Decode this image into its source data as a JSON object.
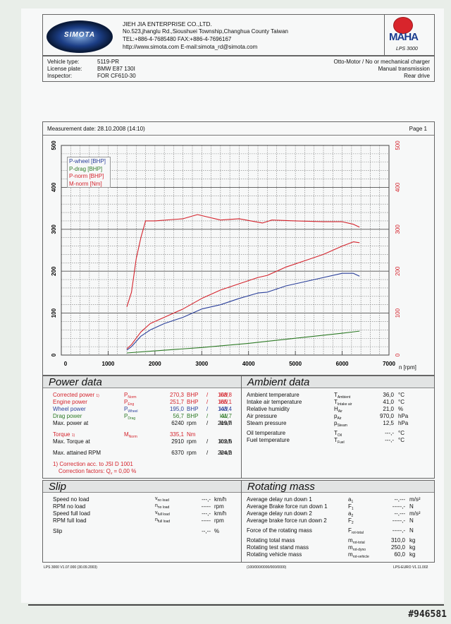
{
  "header": {
    "brand_logo": "SIMOTA",
    "company": "JIEH JIA ENTERPRISE CO.,LTD.",
    "address": "No.523,jhanglu Rd.,Sioushuei Township,Changhua County Taiwan",
    "phone_fax": "TEL:+886-4-7685480  FAX:+886-4-7696167",
    "web_email": "http://www.simota.com  E-mail:simota_rd@simota.com",
    "maha_logo": "MAHA",
    "maha_sub": "LPS 3000"
  },
  "vehicle": {
    "labels": [
      "Vehicle type:",
      "License plate:",
      "Inspector:"
    ],
    "values": [
      "5119-PR",
      "BMW E87 130I",
      "FOR CF610-30"
    ],
    "right": [
      "Otto-Motor / No or mechanical charger",
      "Manual transmission",
      "Rear drive"
    ]
  },
  "measurement": {
    "date_label": "Measurement date: 28.10.2008 (14:10)",
    "page": "Page 1"
  },
  "chart_data": {
    "type": "line",
    "title": "",
    "xlabel": "n [rpm]",
    "ylabel": "",
    "xlim": [
      0,
      7000
    ],
    "ylim": [
      0,
      500
    ],
    "x_ticks": [
      "0",
      "1000",
      "2000",
      "3000",
      "4000",
      "5000",
      "6000",
      "7000"
    ],
    "y_ticks_left": [
      "0",
      "100",
      "200",
      "300",
      "400",
      "500"
    ],
    "y_ticks_right": [
      "0",
      "100",
      "200",
      "300",
      "400",
      "500"
    ],
    "grid": true,
    "legend_position": "top-left",
    "legend": [
      "P-wheel [BHP]",
      "P-drag [BHP]",
      "P-norm [BHP]",
      "M-norm [Nm]"
    ],
    "series": [
      {
        "name": "P-wheel [BHP]",
        "color": "#2a3f9a",
        "x": [
          1400,
          1500,
          1700,
          1900,
          2200,
          2600,
          3000,
          3400,
          3800,
          4200,
          4400,
          4800,
          5200,
          5600,
          6000,
          6240,
          6370
        ],
        "y": [
          12,
          20,
          45,
          60,
          75,
          90,
          110,
          120,
          135,
          148,
          150,
          165,
          175,
          185,
          195,
          195,
          188
        ]
      },
      {
        "name": "P-drag [BHP]",
        "color": "#2d7a25",
        "x": [
          1400,
          2000,
          3000,
          4000,
          5000,
          6000,
          6370
        ],
        "y": [
          5,
          10,
          18,
          28,
          40,
          52,
          57
        ]
      },
      {
        "name": "P-norm [BHP]",
        "color": "#d4232c",
        "x": [
          1400,
          1500,
          1700,
          1900,
          2200,
          2600,
          3000,
          3400,
          3800,
          4200,
          4400,
          4800,
          5200,
          5600,
          6000,
          6240,
          6370
        ],
        "y": [
          15,
          25,
          55,
          75,
          90,
          110,
          135,
          155,
          170,
          185,
          190,
          210,
          225,
          240,
          260,
          270,
          268
        ]
      },
      {
        "name": "M-norm [Nm]",
        "color": "#d4232c",
        "x": [
          1400,
          1500,
          1600,
          1700,
          1800,
          2000,
          2600,
          2910,
          3100,
          3400,
          3800,
          4300,
          4500,
          5000,
          5600,
          6000,
          6240,
          6370
        ],
        "y": [
          115,
          150,
          230,
          280,
          320,
          320,
          325,
          335,
          330,
          322,
          325,
          315,
          322,
          320,
          318,
          318,
          312,
          305
        ]
      }
    ]
  },
  "power_data": {
    "title": "Power data",
    "rows": [
      {
        "label": "Corrected power",
        "note": "1)",
        "sym": "P",
        "sub": "Norm",
        "v1": "270,3",
        "u1": "BHP",
        "v2": "198,8",
        "u2": "kW",
        "color": "red"
      },
      {
        "label": "Engine power",
        "sym": "P",
        "sub": "Eng",
        "v1": "251,7",
        "u1": "BHP",
        "v2": "185,1",
        "u2": "kW",
        "color": "red"
      },
      {
        "label": "Wheel power",
        "sym": "P",
        "sub": "Wheel",
        "v1": "195,0",
        "u1": "BHP",
        "v2": "143,4",
        "u2": "kW",
        "color": "blue"
      },
      {
        "label": "Drag power",
        "sym": "P",
        "sub": "Drag",
        "v1": "56,7",
        "u1": "BHP",
        "v2": "41,7",
        "u2": "kW",
        "color": "green"
      },
      {
        "label": "Max. power at",
        "v1": "6240",
        "u1": "rpm",
        "v2": "219,7",
        "u2": "km/h"
      }
    ],
    "torque": {
      "label": "Torque",
      "note": "1)",
      "sym": "M",
      "sub": "Norm",
      "v1": "335,1",
      "u1": "Nm"
    },
    "max_torque": {
      "label": "Max. Torque at",
      "v1": "2910",
      "u1": "rpm",
      "v2": "102,5",
      "u2": "km/h"
    },
    "max_rpm": {
      "label": "Max. attained RPM",
      "v1": "6370",
      "u1": "rpm",
      "v2": "224,2",
      "u2": "km/h"
    },
    "correction1": "1) Correction acc. to JSI D 1001",
    "correction2": "Correction factors: Q",
    "correction2_sub": "v",
    "correction2_val": " =   0,00 %"
  },
  "ambient_data": {
    "title": "Ambient data",
    "rows": [
      {
        "label": "Ambient temperature",
        "sym": "T",
        "sub": "Ambient",
        "v": "36,0",
        "u": "°C"
      },
      {
        "label": "Intake air temperature",
        "sym": "T",
        "sub": "Intake air",
        "v": "41,0",
        "u": "°C"
      },
      {
        "label": "Relative humidity",
        "sym": "H",
        "sub": "Air",
        "v": "21,0",
        "u": "%"
      },
      {
        "label": "Air pressure",
        "sym": "p",
        "sub": "Air",
        "v": "970,0",
        "u": "hPa"
      },
      {
        "label": "Steam pressure",
        "sym": "p",
        "sub": "Steam",
        "v": "12,5",
        "u": "hPa"
      },
      {
        "label": "Oil temperature",
        "sym": "T",
        "sub": "Oil",
        "v": "---,-",
        "u": "°C"
      },
      {
        "label": "Fuel temperature",
        "sym": "T",
        "sub": "Fuel",
        "v": "---,-",
        "u": "°C"
      }
    ]
  },
  "slip": {
    "title": "Slip",
    "rows": [
      {
        "label": "Speed no load",
        "sym": "v",
        "sub": "no load",
        "v": "---,-",
        "u": "km/h"
      },
      {
        "label": "RPM no load",
        "sym": "n",
        "sub": "no load",
        "v": "-----",
        "u": "rpm"
      },
      {
        "label": "Speed full load",
        "sym": "v",
        "sub": "full load",
        "v": "---,-",
        "u": "km/h"
      },
      {
        "label": "RPM full load",
        "sym": "n",
        "sub": "full load",
        "v": "-----",
        "u": "rpm"
      },
      {
        "label": "Slip",
        "sym": "",
        "sub": "",
        "v": "--,--",
        "u": "%"
      }
    ]
  },
  "rotating_mass": {
    "title": "Rotating mass",
    "rows": [
      {
        "label": "Average delay run down 1",
        "sym": "a",
        "sub": "1",
        "v": "--,---",
        "u": "m/s²"
      },
      {
        "label": "Average Brake force run down 1",
        "sym": "F",
        "sub": "1",
        "v": "-----,-",
        "u": "N"
      },
      {
        "label": "Average delay run down 2",
        "sym": "a",
        "sub": "2",
        "v": "--,---",
        "u": "m/s²"
      },
      {
        "label": "Average brake force run down 2",
        "sym": "F",
        "sub": "2",
        "v": "-----,-",
        "u": "N"
      },
      {
        "label": "Force of the rotating mass",
        "sym": "F",
        "sub": "rot-total",
        "v": "-----,-",
        "u": "N"
      },
      {
        "label": "Rotating total mass",
        "sym": "m",
        "sub": "rot-total",
        "v": "310,0",
        "u": "kg"
      },
      {
        "label": "Rotating test stand mass",
        "sym": "m",
        "sub": "rot-dyno",
        "v": "250,0",
        "u": "kg"
      },
      {
        "label": "Rotating vehicle mass",
        "sym": "m",
        "sub": "rot-vehicle",
        "v": "60,0",
        "u": "kg"
      }
    ]
  },
  "footer": {
    "left": "LPS 3000 V1.07.000 (30.09.2003)",
    "center": "(100/000/0000/000/0000)",
    "right": "LPS-EURO V1.11.002",
    "stamp": "#946581"
  }
}
